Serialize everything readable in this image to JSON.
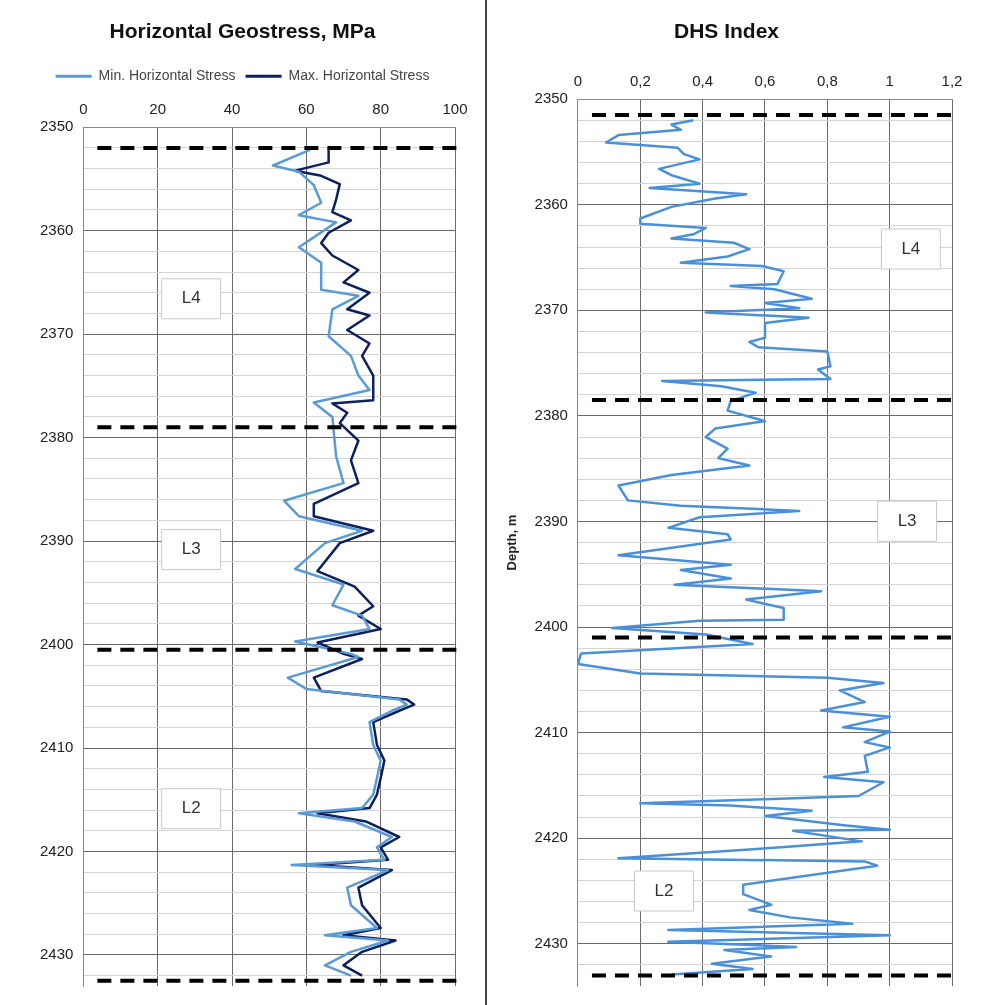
{
  "chart_data": [
    {
      "type": "line",
      "title": "Horizontal Geostress, MPa",
      "legend": "top",
      "grid": true,
      "marker": "none",
      "xlim": [
        0,
        100
      ],
      "xticks": [
        0,
        20,
        40,
        60,
        80,
        100
      ],
      "ylim": [
        2433,
        2350
      ],
      "yticks": [
        2350,
        {
          "value": 2352,
          "label": null
        },
        {
          "value": 2354,
          "label": null
        },
        {
          "value": 2356,
          "label": null
        },
        {
          "value": 2358,
          "label": null
        },
        2360,
        {
          "value": 2362,
          "label": null
        },
        {
          "value": 2364,
          "label": null
        },
        {
          "value": 2366,
          "label": null
        },
        {
          "value": 2368,
          "label": null
        },
        2370,
        {
          "value": 2372,
          "label": null
        },
        {
          "value": 2374,
          "label": null
        },
        {
          "value": 2376,
          "label": null
        },
        {
          "value": 2378,
          "label": null
        },
        2380,
        {
          "value": 2382,
          "label": null
        },
        {
          "value": 2384,
          "label": null
        },
        {
          "value": 2386,
          "label": null
        },
        {
          "value": 2388,
          "label": null
        },
        2390,
        {
          "value": 2392,
          "label": null
        },
        {
          "value": 2394,
          "label": null
        },
        {
          "value": 2396,
          "label": null
        },
        {
          "value": 2398,
          "label": null
        },
        2400,
        {
          "value": 2402,
          "label": null
        },
        {
          "value": 2404,
          "label": null
        },
        {
          "value": 2406,
          "label": null
        },
        {
          "value": 2408,
          "label": null
        },
        2410,
        {
          "value": 2412,
          "label": null
        },
        {
          "value": 2414,
          "label": null
        },
        {
          "value": 2416,
          "label": null
        },
        {
          "value": 2418,
          "label": null
        },
        2420,
        {
          "value": 2422,
          "label": null
        },
        {
          "value": 2424,
          "label": null
        },
        {
          "value": 2426,
          "label": null
        },
        {
          "value": 2428,
          "label": null
        },
        2430,
        {
          "value": 2432,
          "label": null
        }
      ],
      "series": [
        {
          "name": "Min. Horizontal Stress",
          "color": "#5b9bd5",
          "x": [
            61,
            51,
            58,
            62,
            64,
            58,
            68,
            58,
            64,
            64,
            74,
            67,
            66,
            72,
            74,
            77,
            62,
            67,
            68,
            70,
            54,
            58,
            75,
            65,
            57,
            70,
            67,
            75,
            77,
            57,
            72,
            74,
            55,
            60,
            85,
            87,
            83,
            77,
            78,
            80,
            79,
            78,
            75,
            58,
            73,
            83,
            79,
            81,
            56,
            82,
            71,
            72,
            79,
            65,
            82,
            72,
            65,
            72
          ],
          "values": [
            2352.2,
            2353.7,
            2354.3,
            2355.6,
            2357.3,
            2358.5,
            2359.2,
            2361.6,
            2363.1,
            2365.7,
            2366.3,
            2367.6,
            2370.2,
            2372.1,
            2374,
            2375.4,
            2376.6,
            2378,
            2381.8,
            2384.4,
            2386.1,
            2387.6,
            2389,
            2390.2,
            2392.7,
            2394.2,
            2396.2,
            2397.2,
            2398.5,
            2399.7,
            2400.9,
            2401.2,
            2403.2,
            2404.3,
            2405.3,
            2405.8,
            2406.4,
            2407.5,
            2409.7,
            2411.2,
            2412.9,
            2414.5,
            2415.8,
            2416.3,
            2417.1,
            2418.6,
            2419.6,
            2420.8,
            2421.3,
            2421.8,
            2423.5,
            2425.2,
            2427.4,
            2428.1,
            2428.6,
            2429.7,
            2431,
            2432
          ]
        },
        {
          "name": "Max. Horizontal Stress",
          "color": "#0d1f5c",
          "x": [
            66,
            66,
            57,
            64,
            69,
            68,
            67,
            72,
            66,
            64,
            67,
            74,
            70,
            77,
            71,
            77,
            71,
            77,
            75,
            78,
            78,
            67,
            71,
            69,
            74,
            72,
            74,
            62,
            62,
            78,
            69,
            63,
            73,
            78,
            74,
            80,
            63,
            70,
            75,
            62,
            64,
            87,
            89,
            85,
            78,
            79,
            81,
            80,
            79,
            77,
            63,
            76,
            85,
            80,
            82,
            62,
            83,
            74,
            75,
            80,
            70,
            84,
            75,
            70,
            75
          ],
          "values": [
            2352.2,
            2353.4,
            2354.2,
            2354.7,
            2355.5,
            2357,
            2358.2,
            2359,
            2360.2,
            2361.2,
            2362.4,
            2363.8,
            2365,
            2366,
            2367.6,
            2368.2,
            2369.6,
            2370.9,
            2372.1,
            2374,
            2376.4,
            2376.7,
            2377.6,
            2378.6,
            2380.3,
            2382.2,
            2384.4,
            2386.4,
            2387.6,
            2389,
            2390.2,
            2392.9,
            2394.4,
            2396.3,
            2397.2,
            2398.5,
            2399.8,
            2400.9,
            2401.4,
            2403.2,
            2404.5,
            2405.3,
            2405.8,
            2406.4,
            2407.5,
            2409.7,
            2411.2,
            2412.9,
            2414.5,
            2415.8,
            2416.3,
            2417.1,
            2418.6,
            2419.6,
            2420.8,
            2421.3,
            2421.8,
            2423.5,
            2425.2,
            2427.4,
            2428.1,
            2428.6,
            2429.7,
            2431,
            2432
          ]
        }
      ],
      "ref_lines": [
        {
          "axis": "y",
          "value": 2352,
          "label": null,
          "color": "#000000",
          "line_style": "dashed"
        },
        {
          "axis": "y",
          "value": 2379,
          "label": null,
          "color": "#000000",
          "line_style": "dashed"
        },
        {
          "axis": "y",
          "value": 2400.5,
          "label": null,
          "color": "#000000",
          "line_style": "dashed"
        },
        {
          "axis": "y",
          "value": 2432.5,
          "label": null,
          "color": "#000000",
          "line_style": "dashed"
        }
      ],
      "annotations": [
        "L4",
        "L3",
        "L2"
      ]
    },
    {
      "type": "line",
      "title": "DHS Index",
      "ylabel": "Depth, m",
      "grid": true,
      "marker": "none",
      "xlim": [
        0,
        1.2
      ],
      "xticks": [
        0,
        {
          "value": 0.2,
          "label": "0,2"
        },
        {
          "value": 0.4,
          "label": "0,4"
        },
        {
          "value": 0.6,
          "label": "0,6"
        },
        {
          "value": 0.8,
          "label": "0,8"
        },
        1,
        {
          "value": 1.2,
          "label": "1,2"
        }
      ],
      "ylim": [
        2434,
        2350
      ],
      "yticks": [
        2350,
        {
          "value": 2352,
          "label": null
        },
        {
          "value": 2354,
          "label": null
        },
        {
          "value": 2356,
          "label": null
        },
        {
          "value": 2358,
          "label": null
        },
        2360,
        {
          "value": 2362,
          "label": null
        },
        {
          "value": 2364,
          "label": null
        },
        {
          "value": 2366,
          "label": null
        },
        {
          "value": 2368,
          "label": null
        },
        2370,
        {
          "value": 2372,
          "label": null
        },
        {
          "value": 2374,
          "label": null
        },
        {
          "value": 2376,
          "label": null
        },
        {
          "value": 2378,
          "label": null
        },
        2380,
        {
          "value": 2382,
          "label": null
        },
        {
          "value": 2384,
          "label": null
        },
        {
          "value": 2386,
          "label": null
        },
        {
          "value": 2388,
          "label": null
        },
        2390,
        {
          "value": 2392,
          "label": null
        },
        {
          "value": 2394,
          "label": null
        },
        {
          "value": 2396,
          "label": null
        },
        {
          "value": 2398,
          "label": null
        },
        2400,
        {
          "value": 2402,
          "label": null
        },
        {
          "value": 2404,
          "label": null
        },
        {
          "value": 2406,
          "label": null
        },
        {
          "value": 2408,
          "label": null
        },
        2410,
        {
          "value": 2412,
          "label": null
        },
        {
          "value": 2414,
          "label": null
        },
        {
          "value": 2416,
          "label": null
        },
        {
          "value": 2418,
          "label": null
        },
        2420,
        {
          "value": 2422,
          "label": null
        },
        {
          "value": 2424,
          "label": null
        },
        {
          "value": 2426,
          "label": null
        },
        {
          "value": 2428,
          "label": null
        },
        2430,
        {
          "value": 2432,
          "label": null
        }
      ],
      "series": [
        {
          "color": "#4a90d9",
          "x": [
            0.37,
            0.3,
            0.33,
            0.13,
            0.09,
            0.32,
            0.34,
            0.39,
            0.26,
            0.3,
            0.39,
            0.23,
            0.54,
            0.44,
            0.3,
            0.2,
            0.2,
            0.41,
            0.37,
            0.3,
            0.5,
            0.55,
            0.48,
            0.33,
            0.59,
            0.66,
            0.64,
            0.49,
            0.63,
            0.75,
            0.6,
            0.71,
            0.41,
            0.74,
            0.6,
            0.6,
            0.55,
            0.58,
            0.8,
            0.81,
            0.77,
            0.81,
            0.27,
            0.46,
            0.57,
            0.49,
            0.48,
            0.6,
            0.44,
            0.41,
            0.48,
            0.45,
            0.55,
            0.3,
            0.13,
            0.16,
            0.33,
            0.71,
            0.39,
            0.29,
            0.48,
            0.49,
            0.13,
            0.49,
            0.33,
            0.49,
            0.31,
            0.78,
            0.54,
            0.66,
            0.66,
            0.39,
            0.11,
            0.41,
            0.56,
            0.01,
            0,
            0.2,
            0.8,
            0.98,
            0.84,
            0.92,
            0.78,
            1,
            0.85,
            1,
            0.92,
            1,
            0.92,
            0.93,
            0.79,
            0.98,
            0.9,
            0.6,
            0.2,
            0.49,
            0.75,
            0.6,
            0.86,
            1,
            0.69,
            0.91,
            0.63,
            0.13,
            0.92,
            0.96,
            0.53,
            0.53,
            0.62,
            0.55,
            0.68,
            0.88,
            0.29,
            1,
            0.29,
            0.7,
            0.47,
            0.62,
            0.43,
            0.56,
            0.3
          ],
          "values": [
            2352,
            2352.4,
            2352.9,
            2353.4,
            2354.1,
            2354.6,
            2355.2,
            2355.7,
            2356.6,
            2357.2,
            2358,
            2358.4,
            2359,
            2359.4,
            2360.2,
            2361.3,
            2361.8,
            2362.2,
            2362.8,
            2363.2,
            2363.6,
            2364.2,
            2364.9,
            2365.5,
            2365.8,
            2366.3,
            2367.5,
            2367.7,
            2368,
            2368.9,
            2369.3,
            2369.8,
            2370.2,
            2370.7,
            2371.2,
            2372.6,
            2373,
            2373.5,
            2373.9,
            2375.3,
            2375.6,
            2376.5,
            2376.7,
            2377.2,
            2377.8,
            2378.6,
            2379.5,
            2380.5,
            2381.2,
            2382,
            2383.1,
            2384,
            2384.7,
            2385.6,
            2386.6,
            2388,
            2388.5,
            2389,
            2389.6,
            2390.6,
            2391.2,
            2391.7,
            2393.2,
            2394.1,
            2394.6,
            2395.4,
            2396,
            2396.6,
            2397.4,
            2398.2,
            2399.3,
            2399.4,
            2400.1,
            2400.7,
            2401.6,
            2402.5,
            2403.5,
            2404.4,
            2404.8,
            2405.3,
            2406,
            2407.1,
            2407.9,
            2408.5,
            2409.5,
            2409.9,
            2410.9,
            2411.4,
            2412.2,
            2413.7,
            2414.2,
            2414.7,
            2416,
            2416.3,
            2416.7,
            2416.9,
            2417.4,
            2417.9,
            2418.8,
            2419.2,
            2419.3,
            2420.3,
            2420.9,
            2421.9,
            2422.2,
            2422.6,
            2424.4,
            2425.3,
            2426.3,
            2426.8,
            2427.5,
            2428.1,
            2428.7,
            2429.2,
            2429.8,
            2430.3,
            2430.6,
            2431.2,
            2431.9,
            2432.4,
            2432.9
          ]
        }
      ],
      "ref_lines": [
        {
          "axis": "y",
          "value": 2351.5,
          "label": null,
          "color": "#000000",
          "line_style": "dashed"
        },
        {
          "axis": "y",
          "value": 2378.5,
          "label": null,
          "color": "#000000",
          "line_style": "dashed"
        },
        {
          "axis": "y",
          "value": 2401,
          "label": null,
          "color": "#000000",
          "line_style": "dashed"
        },
        {
          "axis": "y",
          "value": 2433,
          "label": null,
          "color": "#000000",
          "line_style": "dashed"
        }
      ],
      "annotations": [
        "L4",
        "L3",
        "L2"
      ]
    }
  ]
}
